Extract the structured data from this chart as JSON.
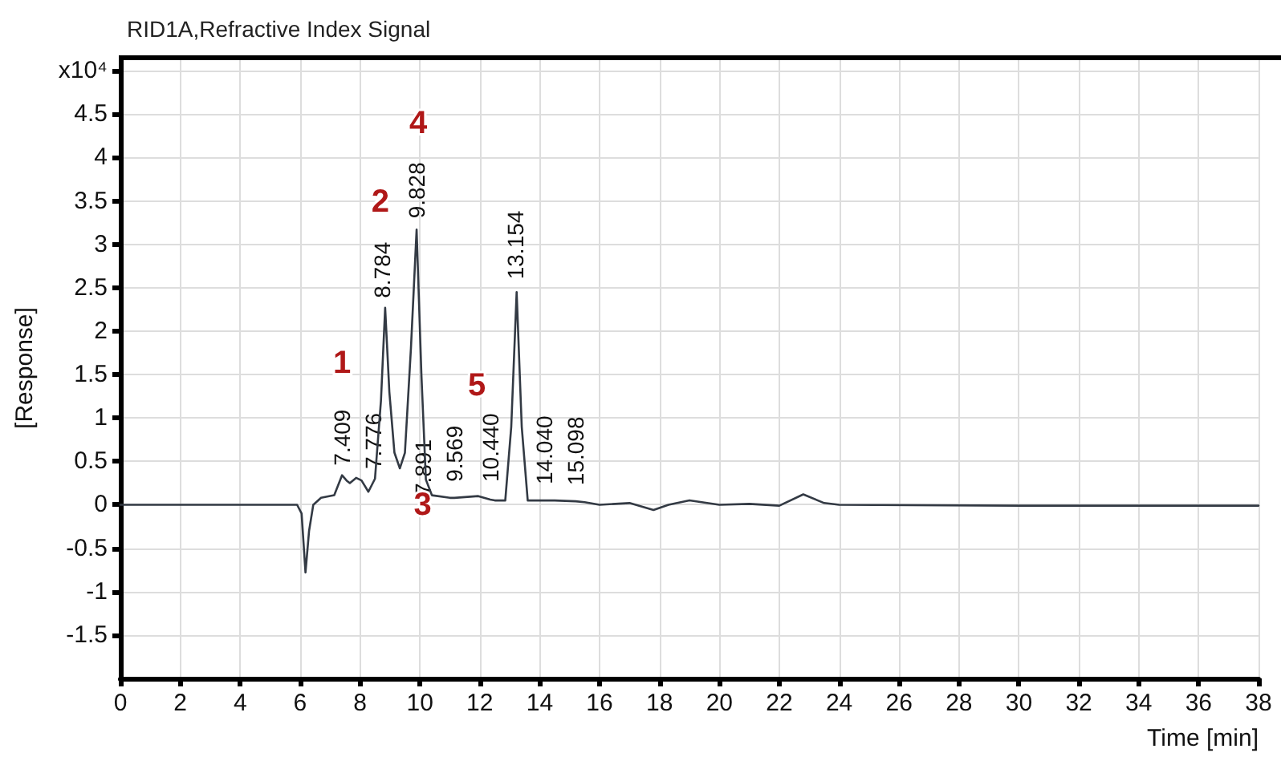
{
  "chart_data": {
    "type": "line",
    "title": "RID1A,Refractive Index Signal",
    "xlabel": "Time [min]",
    "ylabel": "[Response]",
    "series": [
      {
        "color": "#333a44",
        "x": [
          0,
          5.9,
          6.05,
          6.18,
          6.3,
          6.44,
          6.7,
          7.14,
          7.4,
          7.55,
          7.66,
          7.87,
          8.05,
          8.28,
          8.5,
          8.7,
          8.84,
          8.98,
          9.15,
          9.33,
          9.5,
          9.7,
          9.89,
          10.05,
          10.2,
          10.4,
          11,
          11.15,
          11.95,
          12.35,
          12.5,
          12.85,
          13.05,
          13.23,
          13.4,
          13.6,
          14.15,
          14.5,
          15.2,
          15.5,
          16,
          17,
          17.8,
          18.3,
          19,
          20,
          21,
          22,
          22.8,
          23.5,
          24,
          30,
          38
        ],
        "values": [
          0,
          0,
          -0.1,
          -0.78,
          -0.3,
          0,
          0.08,
          0.11,
          0.34,
          0.28,
          0.25,
          0.31,
          0.28,
          0.15,
          0.3,
          1.2,
          2.27,
          1.3,
          0.6,
          0.42,
          0.6,
          1.8,
          3.17,
          1.5,
          0.29,
          0.11,
          0.08,
          0.08,
          0.1,
          0.06,
          0.05,
          0.05,
          0.9,
          2.45,
          0.9,
          0.05,
          0.05,
          0.05,
          0.04,
          0.03,
          0,
          0.02,
          -0.06,
          0,
          0.05,
          0,
          0.01,
          -0.01,
          0.12,
          0.02,
          0,
          -0.01,
          -0.01
        ]
      }
    ],
    "xlim": [
      0,
      38
    ],
    "xticks": [
      0,
      2,
      4,
      6,
      8,
      10,
      12,
      14,
      16,
      18,
      20,
      22,
      24,
      26,
      28,
      30,
      32,
      34,
      36,
      38
    ],
    "ylim": [
      -2,
      5.15
    ],
    "yticks": [
      -1.5,
      -1,
      -0.5,
      0,
      0.5,
      1,
      1.5,
      2,
      2.5,
      3,
      3.5,
      4,
      4.5,
      {
        "value": 5,
        "label": "x10⁴"
      }
    ],
    "grid": true,
    "marker": "none",
    "line_style": "solid",
    "annotations": [
      {
        "text": "7.409",
        "x": 7.4,
        "y": 0.34
      },
      {
        "text": "7.776",
        "x": 8.5,
        "y": 0.3
      },
      {
        "text": "8.784",
        "x": 8.84,
        "y": 2.27
      },
      {
        "text": "9.828",
        "x": 9.89,
        "y": 3.17
      },
      {
        "text": "7.891",
        "x": 10.2,
        "y": 0.29
      },
      {
        "text": "9.569",
        "x": 11.15,
        "y": 0.08
      },
      {
        "text": "10.440",
        "x": 12.35,
        "y": 0.06
      },
      {
        "text": "13.154",
        "x": 13.23,
        "y": 2.45
      },
      {
        "text": "14.040",
        "x": 14.15,
        "y": 0.05
      },
      {
        "text": "15.098",
        "x": 15.2,
        "y": 0.04
      },
      {
        "text": "1",
        "x": 7.4,
        "y": 0.34
      },
      {
        "text": "2",
        "x": 8.84,
        "y": 2.27
      },
      {
        "text": "3",
        "x": 10.2,
        "y": 0.29
      },
      {
        "text": "4",
        "x": 9.89,
        "y": 3.17
      },
      {
        "text": "5",
        "x": 11.15,
        "y": 0.08
      }
    ]
  }
}
